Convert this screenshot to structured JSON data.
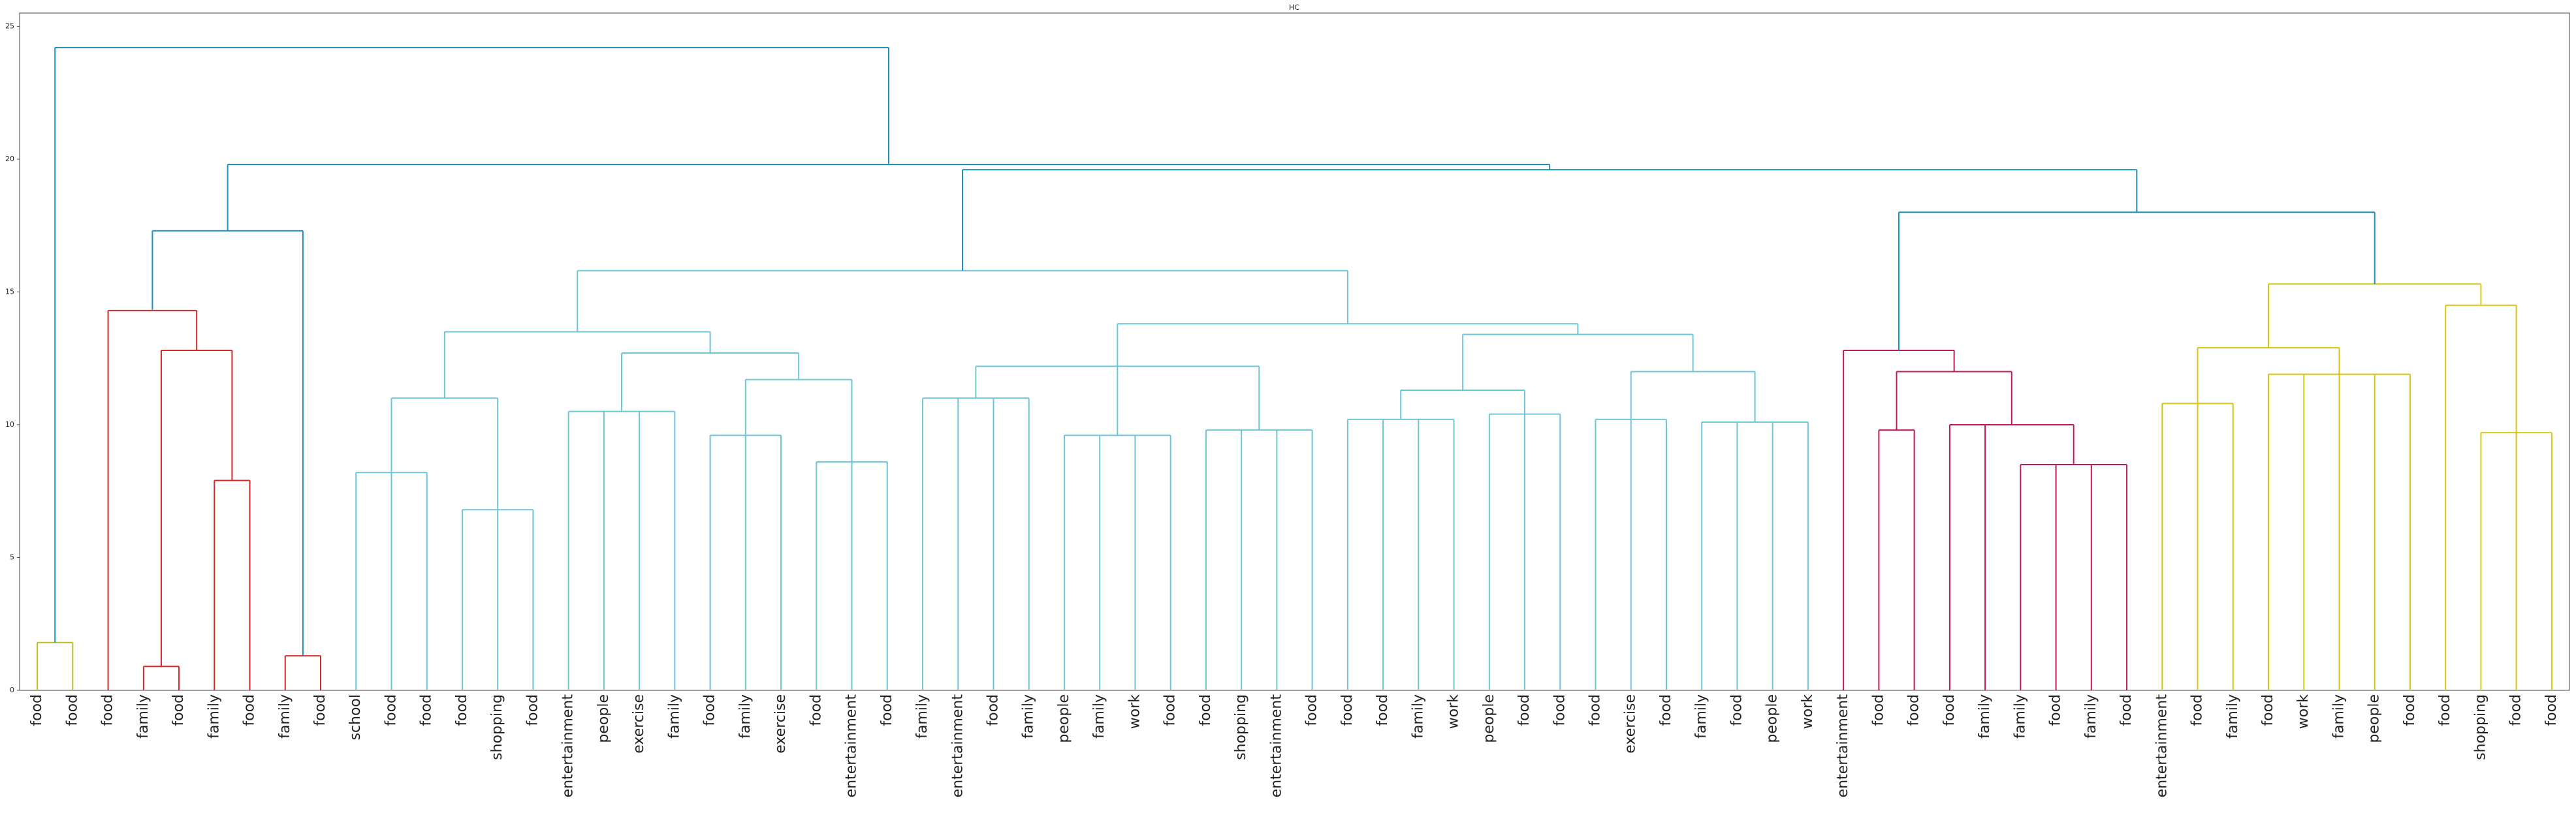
{
  "chart_data": {
    "type": "dendrogram",
    "title": "HC",
    "ylim": [
      0,
      25.5
    ],
    "yticks": [
      0,
      5,
      10,
      15,
      20,
      25
    ],
    "tree": {
      "h": 24.2,
      "color": "#1f8ebf",
      "c": [
        {
          "h": 1.8,
          "color": "#bcbd22",
          "c": [
            {
              "label": "food"
            },
            {
              "label": "food"
            }
          ]
        },
        {
          "h": 19.8,
          "c": [
            {
              "h": 17.3,
              "c": [
                {
                  "h": 14.3,
                  "color": "#d62728",
                  "c": [
                    {
                      "label": "food"
                    },
                    {
                      "h": 12.8,
                      "c": [
                        {
                          "h": 0.9,
                          "c": [
                            {
                              "label": "family"
                            },
                            {
                              "label": "food"
                            }
                          ]
                        },
                        {
                          "h": 7.9,
                          "c": [
                            {
                              "label": "family"
                            },
                            {
                              "label": "food"
                            }
                          ]
                        }
                      ]
                    }
                  ]
                },
                {
                  "h": 1.3,
                  "color": "#d62728",
                  "c": [
                    {
                      "label": "family"
                    },
                    {
                      "label": "food"
                    }
                  ]
                }
              ]
            },
            {
              "h": 19.6,
              "c": [
                {
                  "h": 15.8,
                  "color": "#6cc6d6",
                  "c": [
                    {
                      "h": 13.5,
                      "c": [
                        {
                          "h": 11.0,
                          "c": [
                            {
                              "h": 8.2,
                              "c": [
                                {
                                  "label": "school"
                                },
                                {
                                  "label": "food"
                                },
                                {
                                  "label": "food"
                                }
                              ]
                            },
                            {
                              "h": 6.8,
                              "c": [
                                {
                                  "label": "food"
                                },
                                {
                                  "label": "shopping"
                                },
                                {
                                  "label": "food"
                                }
                              ]
                            }
                          ]
                        },
                        {
                          "h": 12.7,
                          "c": [
                            {
                              "h": 10.5,
                              "c": [
                                {
                                  "label": "entertainment"
                                },
                                {
                                  "label": "people"
                                },
                                {
                                  "label": "exercise"
                                },
                                {
                                  "label": "family"
                                }
                              ]
                            },
                            {
                              "h": 11.7,
                              "c": [
                                {
                                  "h": 9.6,
                                  "c": [
                                    {
                                      "label": "food"
                                    },
                                    {
                                      "label": "family"
                                    },
                                    {
                                      "label": "exercise"
                                    }
                                  ]
                                },
                                {
                                  "h": 8.6,
                                  "c": [
                                    {
                                      "label": "food"
                                    },
                                    {
                                      "label": "entertainment"
                                    },
                                    {
                                      "label": "food"
                                    }
                                  ]
                                }
                              ]
                            }
                          ]
                        }
                      ]
                    },
                    {
                      "h": 13.8,
                      "c": [
                        {
                          "h": 12.2,
                          "c": [
                            {
                              "h": 11.0,
                              "c": [
                                {
                                  "label": "family"
                                },
                                {
                                  "label": "entertainment"
                                },
                                {
                                  "label": "food"
                                },
                                {
                                  "label": "family"
                                }
                              ]
                            },
                            {
                              "h": 9.6,
                              "c": [
                                {
                                  "label": "people"
                                },
                                {
                                  "label": "family"
                                },
                                {
                                  "label": "work"
                                },
                                {
                                  "label": "food"
                                }
                              ]
                            },
                            {
                              "h": 9.8,
                              "c": [
                                {
                                  "label": "food"
                                },
                                {
                                  "label": "shopping"
                                },
                                {
                                  "label": "entertainment"
                                },
                                {
                                  "label": "food"
                                }
                              ]
                            }
                          ]
                        },
                        {
                          "h": 13.4,
                          "c": [
                            {
                              "h": 11.3,
                              "c": [
                                {
                                  "h": 10.2,
                                  "c": [
                                    {
                                      "label": "food"
                                    },
                                    {
                                      "label": "food"
                                    },
                                    {
                                      "label": "family"
                                    },
                                    {
                                      "label": "work"
                                    }
                                  ]
                                },
                                {
                                  "h": 10.4,
                                  "c": [
                                    {
                                      "label": "people"
                                    },
                                    {
                                      "label": "food"
                                    },
                                    {
                                      "label": "food"
                                    }
                                  ]
                                }
                              ]
                            },
                            {
                              "h": 12.0,
                              "c": [
                                {
                                  "h": 10.2,
                                  "c": [
                                    {
                                      "label": "food"
                                    },
                                    {
                                      "label": "exercise"
                                    },
                                    {
                                      "label": "food"
                                    }
                                  ]
                                },
                                {
                                  "h": 10.1,
                                  "c": [
                                    {
                                      "label": "family"
                                    },
                                    {
                                      "label": "food"
                                    },
                                    {
                                      "label": "people"
                                    },
                                    {
                                      "label": "work"
                                    }
                                  ]
                                }
                              ]
                            }
                          ]
                        }
                      ]
                    }
                  ]
                },
                {
                  "h": 18.0,
                  "c": [
                    {
                      "h": 12.8,
                      "color": "#c2185b",
                      "c": [
                        {
                          "label": "entertainment"
                        },
                        {
                          "h": 12.0,
                          "c": [
                            {
                              "h": 9.8,
                              "c": [
                                {
                                  "label": "food"
                                },
                                {
                                  "label": "food"
                                }
                              ]
                            },
                            {
                              "h": 10.0,
                              "c": [
                                {
                                  "label": "food"
                                },
                                {
                                  "label": "family"
                                },
                                {
                                  "h": 8.5,
                                  "c": [
                                    {
                                      "label": "family"
                                    },
                                    {
                                      "label": "food"
                                    },
                                    {
                                      "label": "family"
                                    },
                                    {
                                      "label": "food"
                                    }
                                  ]
                                }
                              ]
                            }
                          ]
                        }
                      ]
                    },
                    {
                      "h": 15.3,
                      "color": "#d4c60f",
                      "c": [
                        {
                          "h": 12.9,
                          "c": [
                            {
                              "h": 10.8,
                              "c": [
                                {
                                  "label": "entertainment"
                                },
                                {
                                  "label": "food"
                                },
                                {
                                  "label": "family"
                                }
                              ]
                            },
                            {
                              "h": 11.9,
                              "c": [
                                {
                                  "label": "food"
                                },
                                {
                                  "label": "work"
                                },
                                {
                                  "label": "family"
                                },
                                {
                                  "label": "people"
                                },
                                {
                                  "label": "food"
                                }
                              ]
                            }
                          ]
                        },
                        {
                          "h": 14.5,
                          "c": [
                            {
                              "label": "food"
                            },
                            {
                              "h": 9.7,
                              "c": [
                                {
                                  "label": "shopping"
                                },
                                {
                                  "label": "food"
                                },
                                {
                                  "label": "food"
                                }
                              ]
                            }
                          ]
                        }
                      ]
                    }
                  ]
                }
              ]
            }
          ]
        }
      ]
    }
  }
}
